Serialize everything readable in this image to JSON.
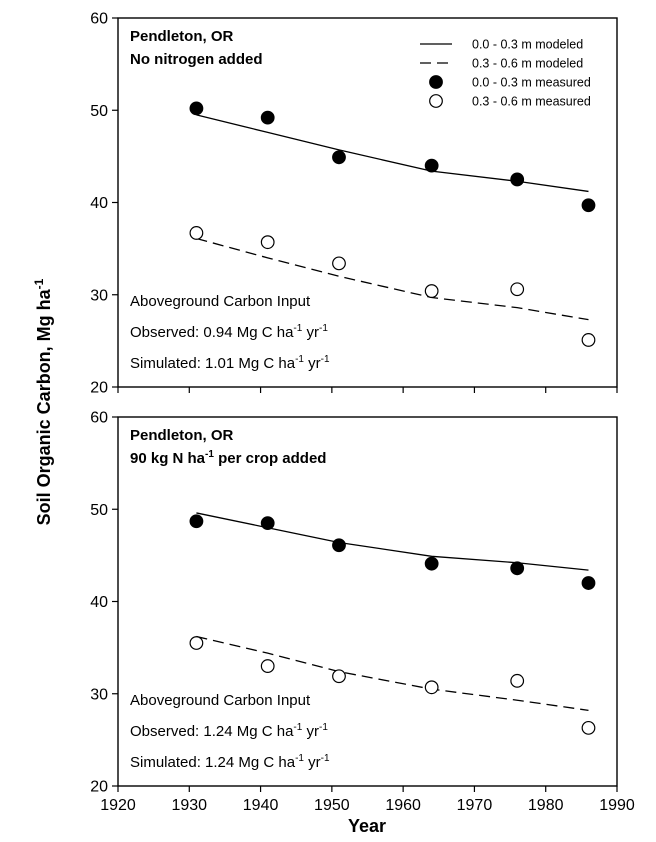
{
  "chart_data": [
    {
      "type": "line",
      "title_lines": [
        "Pendleton, OR",
        "No nitrogen added"
      ],
      "xlim": [
        1920,
        1990
      ],
      "ylim": [
        20,
        60
      ],
      "x_ticks": [
        1920,
        1930,
        1940,
        1950,
        1960,
        1970,
        1980,
        1990
      ],
      "y_ticks": [
        20,
        30,
        40,
        50,
        60
      ],
      "series": [
        {
          "name": "0.0 - 0.3 m modeled",
          "style": "solid-line",
          "x": [
            1931,
            1941,
            1951,
            1964,
            1976,
            1986
          ],
          "y": [
            49.5,
            47.6,
            45.7,
            43.4,
            42.3,
            41.2
          ]
        },
        {
          "name": "0.3 - 0.6 m modeled",
          "style": "dashed-line",
          "x": [
            1931,
            1941,
            1951,
            1964,
            1976,
            1986
          ],
          "y": [
            36.1,
            34.0,
            32.0,
            29.7,
            28.6,
            27.3
          ]
        },
        {
          "name": "0.0 - 0.3 m measured",
          "style": "filled-circle",
          "x": [
            1931,
            1941,
            1951,
            1964,
            1976,
            1986
          ],
          "y": [
            50.2,
            49.2,
            44.9,
            44.0,
            42.5,
            39.7
          ]
        },
        {
          "name": "0.3 - 0.6 m measured",
          "style": "open-circle",
          "x": [
            1931,
            1941,
            1951,
            1964,
            1976,
            1986
          ],
          "y": [
            36.7,
            35.7,
            33.4,
            30.4,
            30.6,
            25.1
          ]
        }
      ],
      "annotation": {
        "heading": "Aboveground Carbon Input",
        "observed": {
          "prefix": "Observed: 0.94 Mg C ha",
          "exp1": "-1",
          "mid": " yr",
          "exp2": "-1"
        },
        "simulated": {
          "prefix": "Simulated: 1.01 Mg C ha",
          "exp1": "-1",
          "mid": " yr",
          "exp2": "-1"
        }
      }
    },
    {
      "type": "line",
      "title_lines": [
        "Pendleton, OR"
      ],
      "title_line2": {
        "prefix": "90 kg N ha",
        "exp": "-1",
        "suffix": " per crop added"
      },
      "xlim": [
        1920,
        1990
      ],
      "ylim": [
        20,
        60
      ],
      "x_ticks": [
        1920,
        1930,
        1940,
        1950,
        1960,
        1970,
        1980,
        1990
      ],
      "y_ticks": [
        20,
        30,
        40,
        50,
        60
      ],
      "series": [
        {
          "name": "0.0 - 0.3 m modeled",
          "style": "solid-line",
          "x": [
            1931,
            1941,
            1951,
            1964,
            1976,
            1986
          ],
          "y": [
            49.6,
            48.0,
            46.4,
            44.9,
            44.2,
            43.4
          ]
        },
        {
          "name": "0.3 - 0.6 m modeled",
          "style": "dashed-line",
          "x": [
            1931,
            1941,
            1951,
            1964,
            1976,
            1986
          ],
          "y": [
            36.2,
            34.4,
            32.4,
            30.5,
            29.3,
            28.2
          ]
        },
        {
          "name": "0.0 - 0.3 m measured",
          "style": "filled-circle",
          "x": [
            1931,
            1941,
            1951,
            1964,
            1976,
            1986
          ],
          "y": [
            48.7,
            48.5,
            46.1,
            44.1,
            43.6,
            42.0
          ]
        },
        {
          "name": "0.3 - 0.6 m measured",
          "style": "open-circle",
          "x": [
            1931,
            1941,
            1951,
            1964,
            1976,
            1986
          ],
          "y": [
            35.5,
            33.0,
            31.9,
            30.7,
            31.4,
            26.3
          ]
        }
      ],
      "annotation": {
        "heading": "Aboveground Carbon Input",
        "observed": {
          "prefix": "Observed: 1.24 Mg C ha",
          "exp1": "-1",
          "mid": " yr",
          "exp2": "-1"
        },
        "simulated": {
          "prefix": "Simulated: 1.24 Mg C ha",
          "exp1": "-1",
          "mid": " yr",
          "exp2": "-1"
        }
      }
    }
  ],
  "axes": {
    "ylabel_prefix": "Soil Organic Carbon, Mg ha",
    "ylabel_exp": "-1",
    "xlabel": "Year"
  }
}
